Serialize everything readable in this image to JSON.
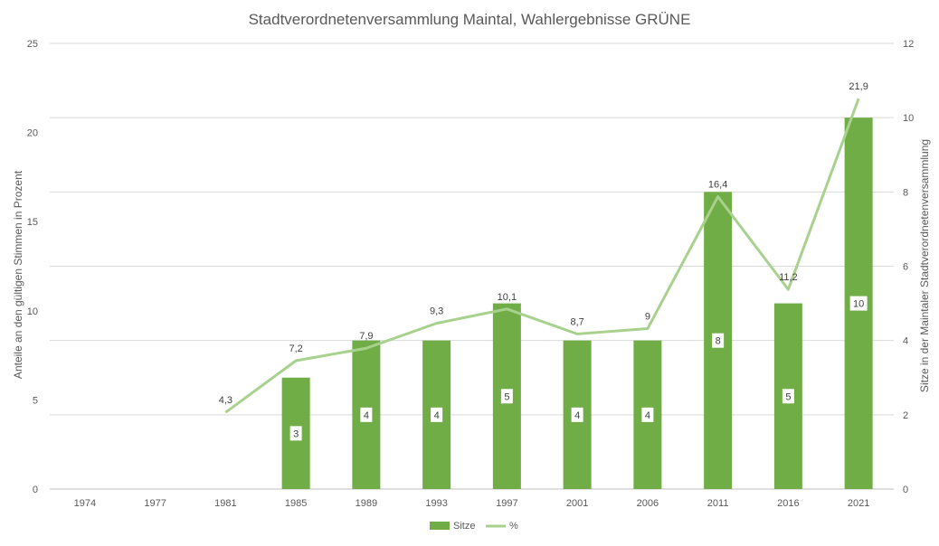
{
  "chart_data": {
    "type": "bar",
    "title": "Stadtverordnetenversammlung Maintal, Wahlergebnisse GRÜNE",
    "ylabel_left": "Anteile an den gültigen Stimmen in Prozent",
    "ylabel_right": "Sitze in der Maintaler Stadtverordnetenversammlung",
    "categories": [
      "1974",
      "1977",
      "1981",
      "1985",
      "1989",
      "1993",
      "1997",
      "2001",
      "2006",
      "2011",
      "2016",
      "2021"
    ],
    "left_axis": {
      "min": 0,
      "max": 25,
      "ticks": [
        "0",
        "5",
        "10",
        "15",
        "20",
        "25"
      ]
    },
    "right_axis": {
      "min": 0,
      "max": 12,
      "ticks": [
        "0",
        "2",
        "4",
        "6",
        "8",
        "10",
        "12"
      ]
    },
    "grid": true,
    "legend_position": "bottom",
    "series": [
      {
        "name": "Sitze",
        "kind": "bar",
        "axis": "right",
        "color": "#70ad47",
        "values": [
          null,
          null,
          null,
          3,
          4,
          4,
          5,
          4,
          4,
          8,
          5,
          10
        ],
        "labels": [
          "",
          "",
          "",
          "3",
          "4",
          "4",
          "5",
          "4",
          "4",
          "8",
          "5",
          "10"
        ]
      },
      {
        "name": "%",
        "kind": "line",
        "axis": "left",
        "color": "#a9d18e",
        "values": [
          null,
          null,
          4.3,
          7.2,
          7.9,
          9.3,
          10.1,
          8.7,
          9,
          16.4,
          11.2,
          21.9
        ],
        "labels": [
          "",
          "",
          "4,3",
          "7,2",
          "7,9",
          "9,3",
          "10,1",
          "8,7",
          "9",
          "16,4",
          "11,2",
          "21,9"
        ]
      }
    ]
  }
}
